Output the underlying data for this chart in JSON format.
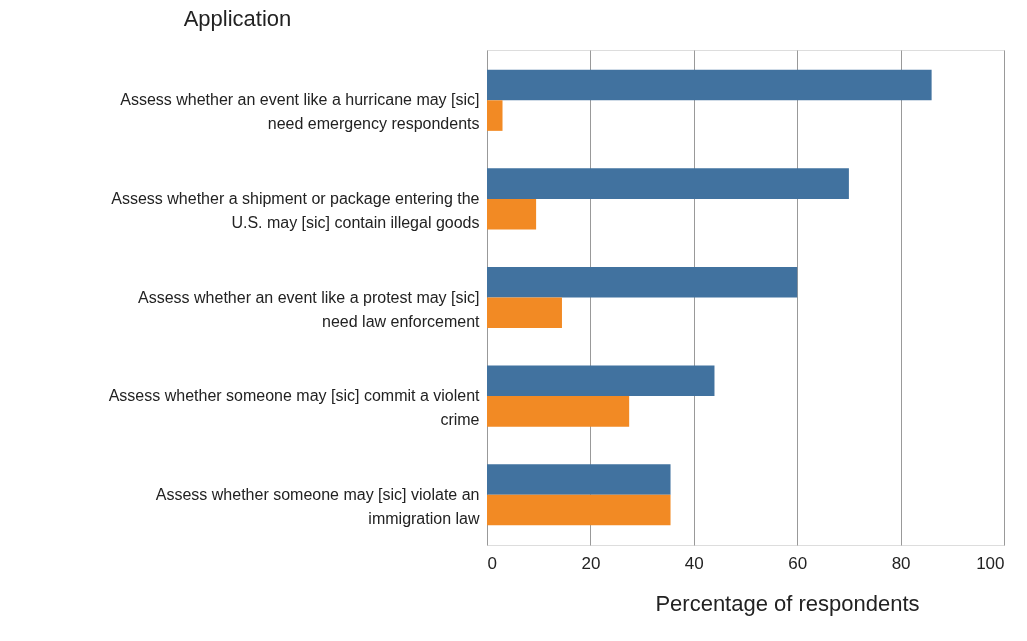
{
  "chart_data": {
    "type": "bar",
    "orientation": "horizontal",
    "ylabel": "Application",
    "xlabel": "Percentage of respondents",
    "categories": [
      "Assess whether an event like a hurricane may [sic] need emergency respondents",
      "Assess whether a shipment or package entering the U.S. may [sic] contain illegal goods",
      "Assess whether an event like a protest may [sic] need law enforcement",
      "Assess whether someone may [sic] commit a violent crime",
      "Assess whether someone may [sic] violate an immigration law"
    ],
    "series": [
      {
        "color": "#41729f",
        "values": [
          86,
          70,
          60,
          44,
          35.5
        ]
      },
      {
        "color": "#f28a24",
        "values": [
          3,
          9.5,
          14.5,
          27.5,
          35.5
        ]
      }
    ],
    "xlim": [
      0,
      100
    ],
    "xticks": [
      0,
      20,
      40,
      60,
      80,
      100
    ],
    "grid": "x",
    "legend": false
  }
}
